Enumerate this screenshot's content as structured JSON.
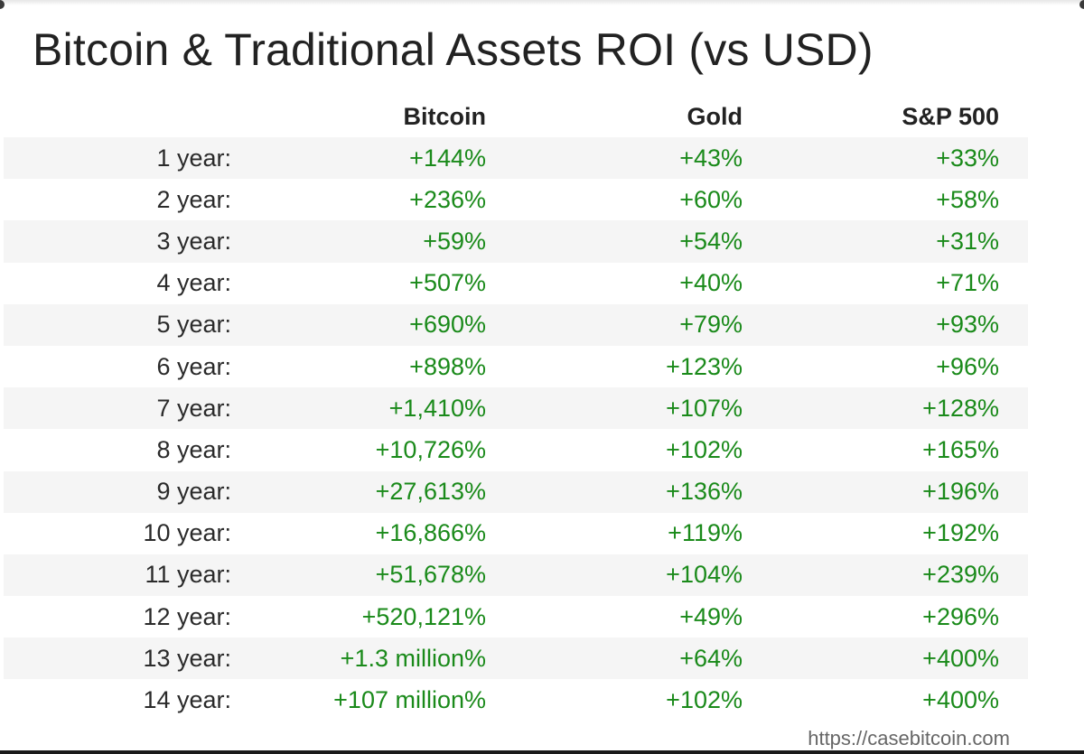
{
  "title": "Bitcoin & Traditional Assets ROI (vs USD)",
  "columns": [
    "",
    "Bitcoin",
    "Gold",
    "S&P 500"
  ],
  "rows": [
    {
      "period": "1 year:",
      "bitcoin": "+144%",
      "gold": "+43%",
      "sp500": "+33%"
    },
    {
      "period": "2 year:",
      "bitcoin": "+236%",
      "gold": "+60%",
      "sp500": "+58%"
    },
    {
      "period": "3 year:",
      "bitcoin": "+59%",
      "gold": "+54%",
      "sp500": "+31%"
    },
    {
      "period": "4 year:",
      "bitcoin": "+507%",
      "gold": "+40%",
      "sp500": "+71%"
    },
    {
      "period": "5 year:",
      "bitcoin": "+690%",
      "gold": "+79%",
      "sp500": "+93%"
    },
    {
      "period": "6 year:",
      "bitcoin": "+898%",
      "gold": "+123%",
      "sp500": "+96%"
    },
    {
      "period": "7 year:",
      "bitcoin": "+1,410%",
      "gold": "+107%",
      "sp500": "+128%"
    },
    {
      "period": "8 year:",
      "bitcoin": "+10,726%",
      "gold": "+102%",
      "sp500": "+165%"
    },
    {
      "period": "9 year:",
      "bitcoin": "+27,613%",
      "gold": "+136%",
      "sp500": "+196%"
    },
    {
      "period": "10 year:",
      "bitcoin": "+16,866%",
      "gold": "+119%",
      "sp500": "+192%"
    },
    {
      "period": "11 year:",
      "bitcoin": "+51,678%",
      "gold": "+104%",
      "sp500": "+239%"
    },
    {
      "period": "12 year:",
      "bitcoin": "+520,121%",
      "gold": "+49%",
      "sp500": "+296%"
    },
    {
      "period": "13 year:",
      "bitcoin": "+1.3 million%",
      "gold": "+64%",
      "sp500": "+400%"
    },
    {
      "period": "14 year:",
      "bitcoin": "+107 million%",
      "gold": "+102%",
      "sp500": "+400%"
    }
  ],
  "source": "https://casebitcoin.com",
  "colors": {
    "positive_value": "#1a8a1a",
    "text": "#222222",
    "stripe": "#f5f5f5"
  }
}
